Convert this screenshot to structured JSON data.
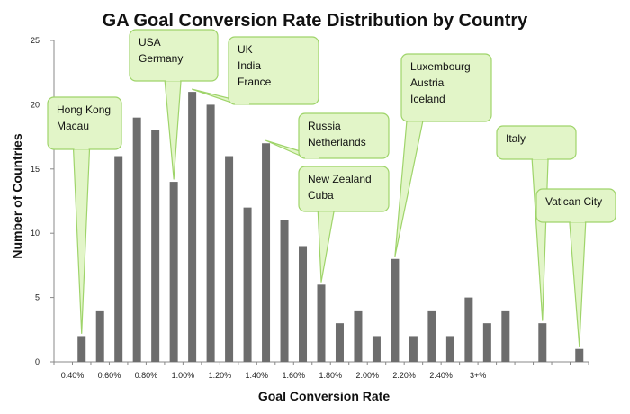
{
  "chart_data": {
    "type": "bar",
    "title": "GA Goal Conversion Rate Distribution by Country",
    "xlabel": "Goal Conversion Rate",
    "ylabel": "Number of Countries",
    "ylim": [
      0,
      25
    ],
    "yticks": [
      0,
      5,
      10,
      15,
      20,
      25
    ],
    "grid": false,
    "bar_color": "#6d6d6d",
    "callout_fill": "#e2f5c8",
    "callout_stroke": "#9fd46a",
    "values": [
      0,
      2,
      4,
      16,
      19,
      18,
      14,
      21,
      20,
      16,
      12,
      17,
      11,
      9,
      6,
      3,
      4,
      2,
      8,
      2,
      4,
      2,
      5,
      3,
      4,
      0,
      3,
      0,
      1
    ],
    "xtick_labels": [
      {
        "index": 0,
        "label": "0.40%"
      },
      {
        "index": 2,
        "label": "0.60%"
      },
      {
        "index": 4,
        "label": "0.80%"
      },
      {
        "index": 6,
        "label": "1.00%"
      },
      {
        "index": 8,
        "label": "1.20%"
      },
      {
        "index": 10,
        "label": "1.40%"
      },
      {
        "index": 12,
        "label": "1.60%"
      },
      {
        "index": 14,
        "label": "1.80%"
      },
      {
        "index": 16,
        "label": "2.00%"
      },
      {
        "index": 18,
        "label": "2.20%"
      },
      {
        "index": 20,
        "label": "2.40%"
      },
      {
        "index": 22,
        "label": "3+%"
      }
    ],
    "annotations": [
      {
        "lines": [
          "Hong Kong",
          "Macau"
        ],
        "bar_index": 1
      },
      {
        "lines": [
          "USA",
          "Germany"
        ],
        "bar_index": 6
      },
      {
        "lines": [
          "UK",
          "India",
          "France"
        ],
        "bar_index": 7
      },
      {
        "lines": [
          "Russia",
          "Netherlands"
        ],
        "bar_index": 11
      },
      {
        "lines": [
          "New Zealand",
          "Cuba"
        ],
        "bar_index": 14
      },
      {
        "lines": [
          "Luxembourg",
          "Austria",
          "Iceland"
        ],
        "bar_index": 18
      },
      {
        "lines": [
          "Italy"
        ],
        "bar_index": 26
      },
      {
        "lines": [
          "Vatican City"
        ],
        "bar_index": 28
      }
    ]
  }
}
